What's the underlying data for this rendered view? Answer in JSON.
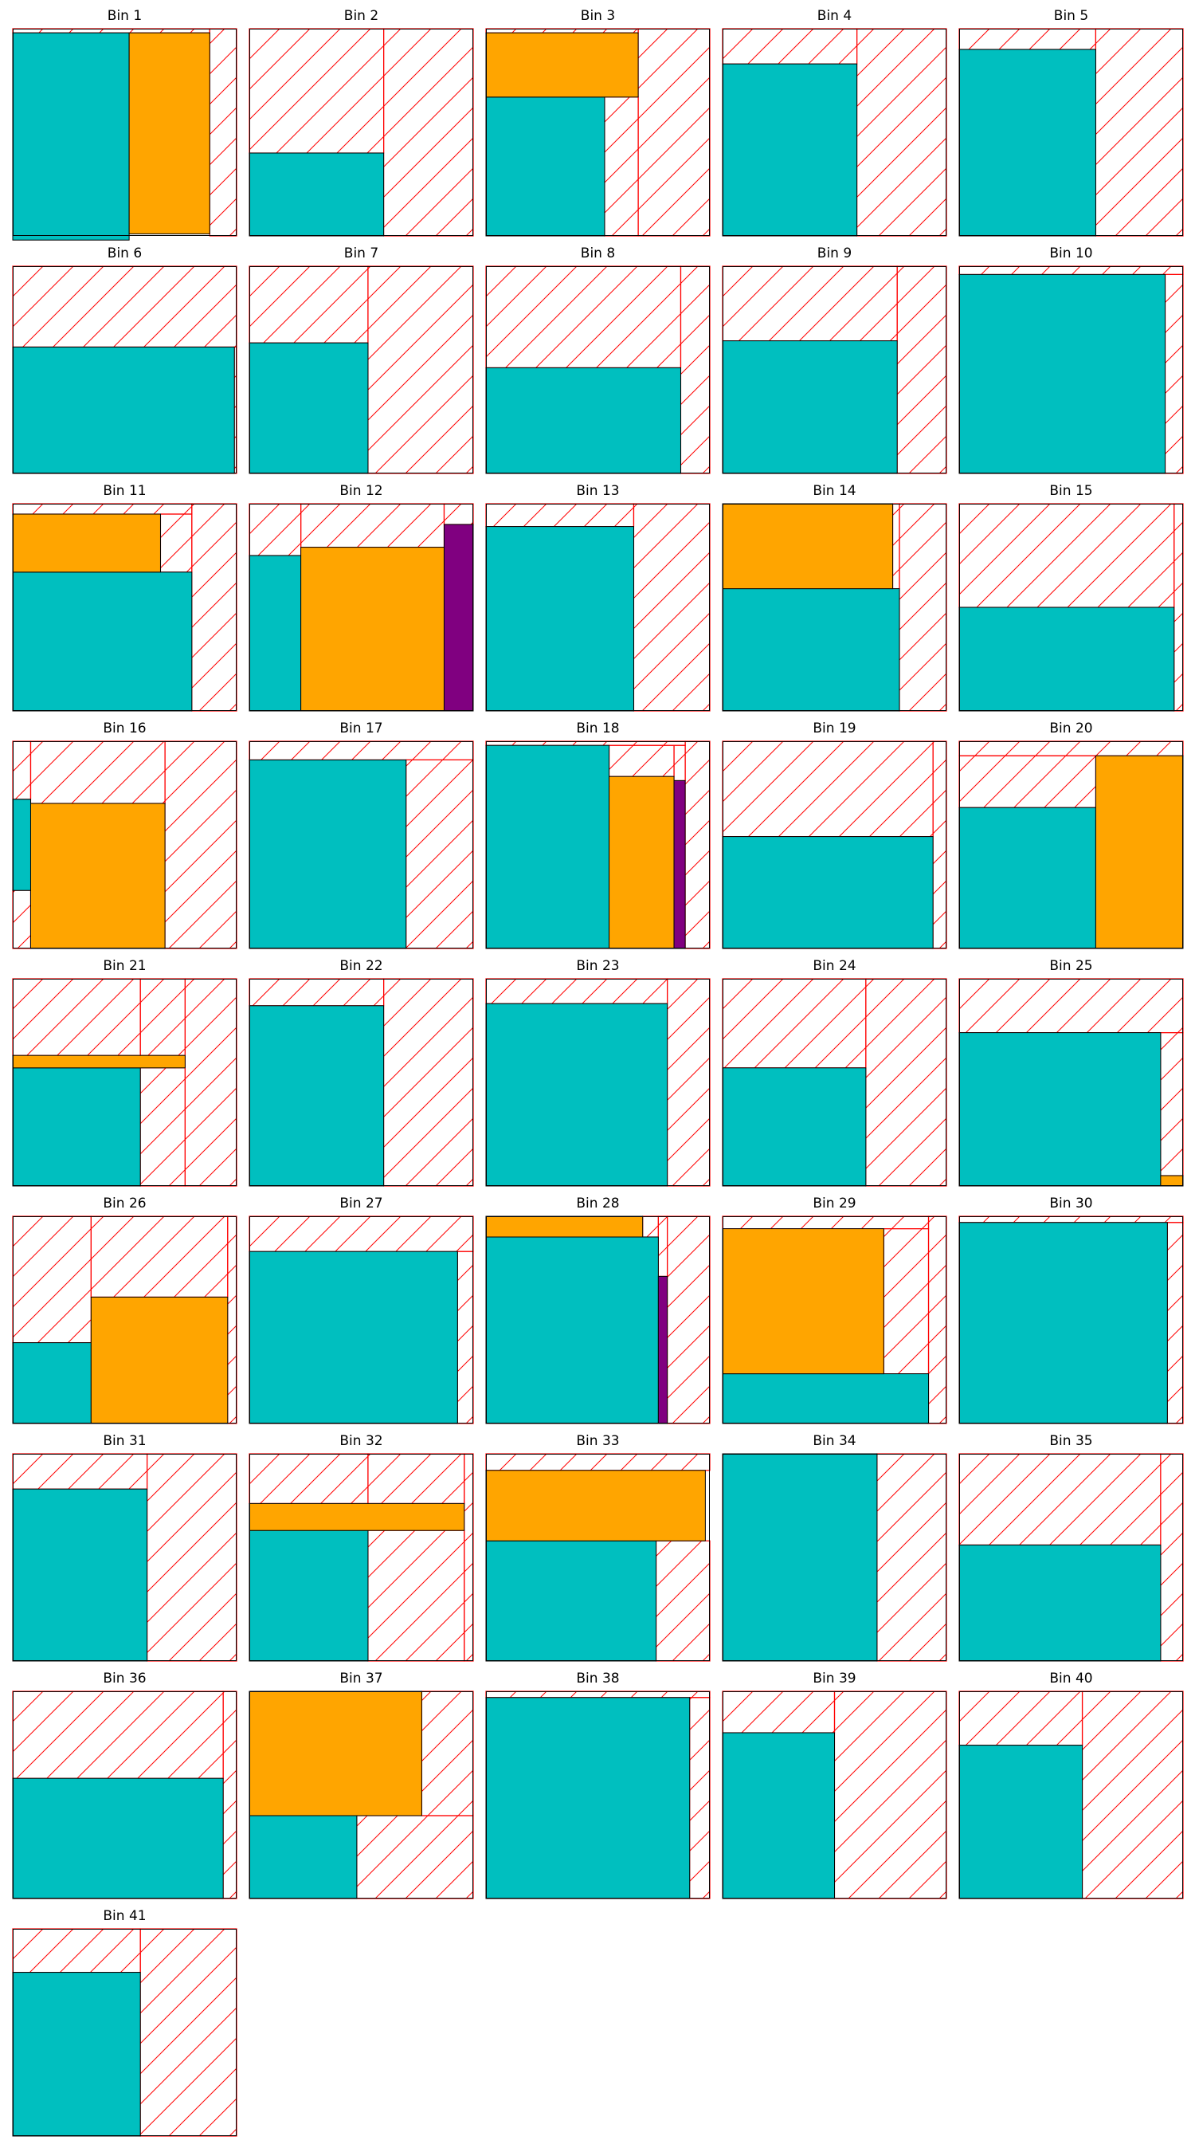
{
  "colors": {
    "cyan": "#00BFBF",
    "orange": "#FFA500",
    "purple": "#800080",
    "waste": "#FF0000",
    "border": "#000000"
  },
  "units": {
    "bin_size": 100
  },
  "bins": [
    {
      "title": "Bin 1",
      "items": [
        {
          "r": [
            0,
            2,
            52,
            100
          ],
          "c": "cyan"
        },
        {
          "r": [
            52,
            2,
            36,
            97
          ],
          "c": "orange"
        }
      ],
      "free": [
        [
          0,
          0,
          88,
          2
        ],
        [
          88,
          0,
          12,
          100
        ]
      ]
    },
    {
      "title": "Bin 2",
      "items": [
        {
          "r": [
            0,
            60,
            60,
            40
          ],
          "c": "cyan"
        }
      ],
      "free": [
        [
          0,
          0,
          60,
          60
        ],
        [
          60,
          0,
          40,
          100
        ]
      ]
    },
    {
      "title": "Bin 3",
      "items": [
        {
          "r": [
            0,
            33,
            53,
            67
          ],
          "c": "cyan"
        },
        {
          "r": [
            0,
            2,
            68,
            31
          ],
          "c": "orange"
        }
      ],
      "free": [
        [
          0,
          0,
          68,
          2
        ],
        [
          53,
          33,
          15,
          67
        ],
        [
          68,
          0,
          32,
          100
        ]
      ]
    },
    {
      "title": "Bin 4",
      "items": [
        {
          "r": [
            0,
            17,
            60,
            83
          ],
          "c": "cyan"
        }
      ],
      "free": [
        [
          0,
          0,
          60,
          17
        ],
        [
          60,
          0,
          40,
          100
        ]
      ]
    },
    {
      "title": "Bin 5",
      "items": [
        {
          "r": [
            0,
            10,
            61,
            90
          ],
          "c": "cyan"
        }
      ],
      "free": [
        [
          0,
          0,
          61,
          10
        ],
        [
          61,
          0,
          39,
          100
        ]
      ]
    },
    {
      "title": "Bin 6",
      "items": [
        {
          "r": [
            0,
            39,
            99,
            61
          ],
          "c": "cyan"
        }
      ],
      "free": [
        [
          0,
          0,
          100,
          39
        ],
        [
          99,
          39,
          1,
          61
        ]
      ]
    },
    {
      "title": "Bin 7",
      "items": [
        {
          "r": [
            0,
            37,
            53,
            63
          ],
          "c": "cyan"
        }
      ],
      "free": [
        [
          0,
          0,
          53,
          37
        ],
        [
          53,
          0,
          47,
          100
        ]
      ]
    },
    {
      "title": "Bin 8",
      "items": [
        {
          "r": [
            0,
            49,
            87,
            51
          ],
          "c": "cyan"
        }
      ],
      "free": [
        [
          0,
          0,
          87,
          49
        ],
        [
          87,
          0,
          13,
          100
        ]
      ]
    },
    {
      "title": "Bin 9",
      "items": [
        {
          "r": [
            0,
            36,
            78,
            64
          ],
          "c": "cyan"
        }
      ],
      "free": [
        [
          0,
          0,
          78,
          36
        ],
        [
          78,
          0,
          22,
          100
        ]
      ]
    },
    {
      "title": "Bin 10",
      "items": [
        {
          "r": [
            0,
            4,
            92,
            96
          ],
          "c": "cyan"
        }
      ],
      "free": [
        [
          0,
          0,
          100,
          4
        ],
        [
          92,
          4,
          8,
          96
        ]
      ]
    },
    {
      "title": "Bin 11",
      "items": [
        {
          "r": [
            0,
            33,
            80,
            67
          ],
          "c": "cyan"
        },
        {
          "r": [
            0,
            5,
            66,
            28
          ],
          "c": "orange"
        }
      ],
      "free": [
        [
          0,
          0,
          80,
          5
        ],
        [
          66,
          5,
          14,
          28
        ],
        [
          80,
          0,
          20,
          100
        ]
      ]
    },
    {
      "title": "Bin 12",
      "items": [
        {
          "r": [
            0,
            25,
            23,
            75
          ],
          "c": "cyan"
        },
        {
          "r": [
            23,
            21,
            64,
            79
          ],
          "c": "orange"
        },
        {
          "r": [
            87,
            10,
            13,
            90
          ],
          "c": "purple"
        }
      ],
      "free": [
        [
          0,
          0,
          23,
          25
        ],
        [
          23,
          0,
          64,
          21
        ],
        [
          87,
          0,
          13,
          10
        ]
      ]
    },
    {
      "title": "Bin 13",
      "items": [
        {
          "r": [
            0,
            11,
            66,
            89
          ],
          "c": "cyan"
        }
      ],
      "free": [
        [
          0,
          0,
          66,
          11
        ],
        [
          66,
          0,
          34,
          100
        ]
      ]
    },
    {
      "title": "Bin 14",
      "items": [
        {
          "r": [
            0,
            41,
            79,
            59
          ],
          "c": "cyan"
        },
        {
          "r": [
            0,
            0,
            76,
            41
          ],
          "c": "orange"
        }
      ],
      "free": [
        [
          76,
          0,
          3,
          41
        ],
        [
          79,
          0,
          21,
          100
        ]
      ]
    },
    {
      "title": "Bin 15",
      "items": [
        {
          "r": [
            0,
            50,
            96,
            50
          ],
          "c": "cyan"
        }
      ],
      "free": [
        [
          0,
          0,
          96,
          50
        ],
        [
          96,
          0,
          4,
          100
        ]
      ]
    },
    {
      "title": "Bin 16",
      "items": [
        {
          "r": [
            0,
            28,
            8,
            44
          ],
          "c": "cyan"
        },
        {
          "r": [
            8,
            30,
            60,
            70
          ],
          "c": "orange"
        }
      ],
      "free": [
        [
          0,
          0,
          8,
          28
        ],
        [
          0,
          72,
          8,
          28
        ],
        [
          8,
          0,
          60,
          30
        ],
        [
          68,
          0,
          32,
          100
        ]
      ]
    },
    {
      "title": "Bin 17",
      "items": [
        {
          "r": [
            0,
            9,
            70,
            91
          ],
          "c": "cyan"
        }
      ],
      "free": [
        [
          0,
          0,
          100,
          9
        ],
        [
          70,
          9,
          30,
          91
        ]
      ]
    },
    {
      "title": "Bin 18",
      "items": [
        {
          "r": [
            0,
            2,
            55,
            98
          ],
          "c": "cyan"
        },
        {
          "r": [
            55,
            17,
            29,
            83
          ],
          "c": "orange"
        },
        {
          "r": [
            84,
            19,
            5,
            81
          ],
          "c": "purple"
        }
      ],
      "free": [
        [
          0,
          0,
          89,
          2
        ],
        [
          55,
          2,
          29,
          15
        ],
        [
          84,
          2,
          5,
          17
        ],
        [
          89,
          0,
          11,
          100
        ]
      ]
    },
    {
      "title": "Bin 19",
      "items": [
        {
          "r": [
            0,
            46,
            94,
            54
          ],
          "c": "cyan"
        }
      ],
      "free": [
        [
          0,
          0,
          94,
          46
        ],
        [
          94,
          0,
          6,
          100
        ]
      ]
    },
    {
      "title": "Bin 20",
      "items": [
        {
          "r": [
            0,
            32,
            61,
            68
          ],
          "c": "cyan"
        },
        {
          "r": [
            61,
            7,
            39,
            93
          ],
          "c": "orange"
        }
      ],
      "free": [
        [
          0,
          0,
          100,
          7
        ],
        [
          0,
          7,
          61,
          25
        ]
      ]
    },
    {
      "title": "Bin 21",
      "items": [
        {
          "r": [
            0,
            43,
            57,
            57
          ],
          "c": "cyan"
        },
        {
          "r": [
            0,
            37,
            77,
            6
          ],
          "c": "orange"
        }
      ],
      "free": [
        [
          0,
          0,
          57,
          37
        ],
        [
          57,
          0,
          20,
          37
        ],
        [
          57,
          43,
          20,
          57
        ],
        [
          77,
          0,
          23,
          100
        ]
      ]
    },
    {
      "title": "Bin 22",
      "items": [
        {
          "r": [
            0,
            13,
            60,
            87
          ],
          "c": "cyan"
        }
      ],
      "free": [
        [
          0,
          0,
          60,
          13
        ],
        [
          60,
          0,
          40,
          100
        ]
      ]
    },
    {
      "title": "Bin 23",
      "items": [
        {
          "r": [
            0,
            12,
            81,
            88
          ],
          "c": "cyan"
        }
      ],
      "free": [
        [
          0,
          0,
          81,
          12
        ],
        [
          81,
          0,
          19,
          100
        ]
      ]
    },
    {
      "title": "Bin 24",
      "items": [
        {
          "r": [
            0,
            43,
            64,
            57
          ],
          "c": "cyan"
        }
      ],
      "free": [
        [
          0,
          0,
          64,
          43
        ],
        [
          64,
          0,
          36,
          100
        ]
      ]
    },
    {
      "title": "Bin 25",
      "items": [
        {
          "r": [
            0,
            26,
            90,
            74
          ],
          "c": "cyan"
        },
        {
          "r": [
            90,
            95,
            10,
            5
          ],
          "c": "orange"
        }
      ],
      "free": [
        [
          0,
          0,
          100,
          26
        ],
        [
          90,
          26,
          10,
          69
        ]
      ]
    },
    {
      "title": "Bin 26",
      "items": [
        {
          "r": [
            0,
            61,
            35,
            39
          ],
          "c": "cyan"
        },
        {
          "r": [
            35,
            39,
            61,
            61
          ],
          "c": "orange"
        }
      ],
      "free": [
        [
          0,
          0,
          35,
          61
        ],
        [
          35,
          0,
          61,
          39
        ],
        [
          96,
          0,
          4,
          100
        ]
      ]
    },
    {
      "title": "Bin 27",
      "items": [
        {
          "r": [
            0,
            17,
            93,
            83
          ],
          "c": "cyan"
        }
      ],
      "free": [
        [
          0,
          0,
          100,
          17
        ],
        [
          93,
          17,
          7,
          83
        ]
      ]
    },
    {
      "title": "Bin 28",
      "items": [
        {
          "r": [
            0,
            10,
            77,
            90
          ],
          "c": "cyan"
        },
        {
          "r": [
            0,
            0,
            70,
            10
          ],
          "c": "orange"
        },
        {
          "r": [
            77,
            29,
            4,
            71
          ],
          "c": "purple"
        }
      ],
      "free": [
        [
          70,
          0,
          7,
          10
        ],
        [
          77,
          0,
          4,
          29
        ],
        [
          81,
          0,
          19,
          100
        ]
      ]
    },
    {
      "title": "Bin 29",
      "items": [
        {
          "r": [
            0,
            76,
            92,
            24
          ],
          "c": "cyan"
        },
        {
          "r": [
            0,
            6,
            72,
            70
          ],
          "c": "orange"
        }
      ],
      "free": [
        [
          0,
          0,
          92,
          6
        ],
        [
          72,
          6,
          20,
          70
        ],
        [
          92,
          0,
          8,
          100
        ]
      ]
    },
    {
      "title": "Bin 30",
      "items": [
        {
          "r": [
            0,
            3,
            93,
            97
          ],
          "c": "cyan"
        }
      ],
      "free": [
        [
          0,
          0,
          100,
          3
        ],
        [
          93,
          3,
          7,
          97
        ]
      ]
    },
    {
      "title": "Bin 31",
      "items": [
        {
          "r": [
            0,
            17,
            60,
            83
          ],
          "c": "cyan"
        }
      ],
      "free": [
        [
          0,
          0,
          60,
          17
        ],
        [
          60,
          0,
          40,
          100
        ]
      ]
    },
    {
      "title": "Bin 32",
      "items": [
        {
          "r": [
            0,
            37,
            53,
            63
          ],
          "c": "cyan"
        },
        {
          "r": [
            0,
            24,
            96,
            13
          ],
          "c": "orange"
        }
      ],
      "free": [
        [
          0,
          0,
          53,
          24
        ],
        [
          53,
          0,
          43,
          24
        ],
        [
          53,
          37,
          43,
          63
        ],
        [
          96,
          0,
          4,
          100
        ]
      ]
    },
    {
      "title": "Bin 33",
      "items": [
        {
          "r": [
            0,
            42,
            76,
            58
          ],
          "c": "cyan"
        },
        {
          "r": [
            0,
            8,
            98,
            34
          ],
          "c": "orange"
        }
      ],
      "free": [
        [
          0,
          0,
          100,
          8
        ],
        [
          76,
          42,
          24,
          58
        ]
      ]
    },
    {
      "title": "Bin 34",
      "items": [
        {
          "r": [
            0,
            0,
            69,
            100
          ],
          "c": "cyan"
        }
      ],
      "free": [
        [
          69,
          0,
          31,
          100
        ]
      ]
    },
    {
      "title": "Bin 35",
      "items": [
        {
          "r": [
            0,
            44,
            90,
            56
          ],
          "c": "cyan"
        }
      ],
      "free": [
        [
          0,
          0,
          90,
          44
        ],
        [
          90,
          0,
          10,
          100
        ]
      ]
    },
    {
      "title": "Bin 36",
      "items": [
        {
          "r": [
            0,
            42,
            94,
            58
          ],
          "c": "cyan"
        }
      ],
      "free": [
        [
          0,
          0,
          94,
          42
        ],
        [
          94,
          0,
          6,
          100
        ]
      ]
    },
    {
      "title": "Bin 37",
      "items": [
        {
          "r": [
            0,
            60,
            48,
            40
          ],
          "c": "cyan"
        },
        {
          "r": [
            0,
            0,
            77,
            60
          ],
          "c": "orange"
        }
      ],
      "free": [
        [
          48,
          60,
          52,
          40
        ],
        [
          77,
          0,
          23,
          60
        ]
      ]
    },
    {
      "title": "Bin 38",
      "items": [
        {
          "r": [
            0,
            3,
            91,
            97
          ],
          "c": "cyan"
        }
      ],
      "free": [
        [
          0,
          0,
          100,
          3
        ],
        [
          91,
          3,
          9,
          97
        ]
      ]
    },
    {
      "title": "Bin 39",
      "items": [
        {
          "r": [
            0,
            20,
            50,
            80
          ],
          "c": "cyan"
        }
      ],
      "free": [
        [
          0,
          0,
          50,
          20
        ],
        [
          50,
          0,
          50,
          100
        ]
      ]
    },
    {
      "title": "Bin 40",
      "items": [
        {
          "r": [
            0,
            26,
            55,
            74
          ],
          "c": "cyan"
        }
      ],
      "free": [
        [
          0,
          0,
          55,
          26
        ],
        [
          55,
          0,
          45,
          100
        ]
      ]
    },
    {
      "title": "Bin 41",
      "items": [
        {
          "r": [
            0,
            21,
            57,
            79
          ],
          "c": "cyan"
        }
      ],
      "free": [
        [
          0,
          0,
          57,
          21
        ],
        [
          57,
          0,
          43,
          100
        ]
      ]
    }
  ]
}
